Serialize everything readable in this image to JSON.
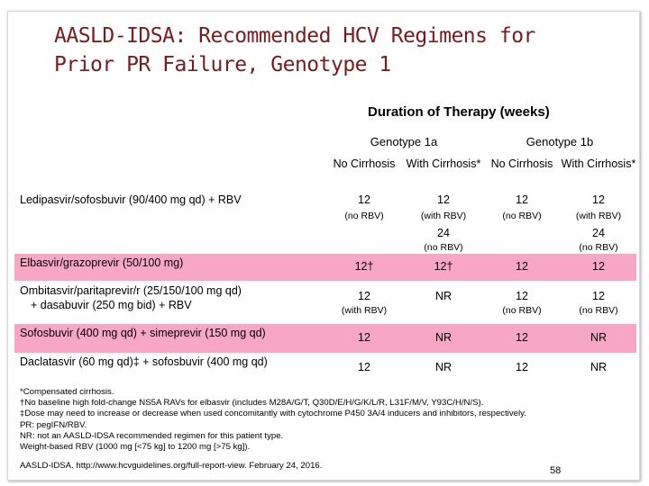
{
  "title": {
    "line1": "AASLD-IDSA: Recommended HCV Regimens for",
    "line2": "Prior PR Failure, Genotype 1"
  },
  "duration_label": "Duration of Therapy (weeks)",
  "genotypes": [
    "Genotype 1a",
    "Genotype 1b"
  ],
  "columns": [
    "No Cirrhosis",
    "With Cirrhosis*",
    "No Cirrhosis",
    "With Cirrhosis*"
  ],
  "rows": [
    {
      "name": "Ledipasvir/sofosbuvir (90/400 mg qd) + RBV",
      "c1": "12",
      "c1_sub": "(no RBV)",
      "c2": "12",
      "c2_sub": "(with RBV)",
      "c2_alt": "24",
      "c2_alt_sub": "(no RBV)",
      "c3": "12",
      "c3_sub": "(no RBV)",
      "c4": "12",
      "c4_sub": "(with RBV)",
      "c4_alt": "24",
      "c4_alt_sub": "(no RBV)"
    },
    {
      "name": "Elbasvir/grazoprevir (50/100 mg)",
      "c1": "12†",
      "c2": "12†",
      "c3": "12",
      "c4": "12"
    },
    {
      "name_line1": "Ombitasvir/paritaprevir/r (25/150/100 mg qd)",
      "name_line2": "+ dasabuvir (250 mg bid) + RBV",
      "c1": "12",
      "c1_sub": "(with RBV)",
      "c2": "NR",
      "c3": "12",
      "c3_sub": "(no RBV)",
      "c4": "12",
      "c4_sub": "(no RBV)"
    },
    {
      "name": "Sofosbuvir (400 mg qd) + simeprevir (150 mg qd)",
      "c1": "12",
      "c2": "NR",
      "c3": "12",
      "c4": "NR"
    },
    {
      "name": "Daclatasvir (60 mg qd)‡ + sofosbuvir (400 mg qd)",
      "c1": "12",
      "c2": "NR",
      "c3": "12",
      "c4": "NR"
    }
  ],
  "footnotes": [
    "*Compensated cirrhosis.",
    "†No baseline high fold-change NS5A RAVs for elbasvir (includes M28A/G/T, Q30D/E/H/G/K/L/R, L31F/M/V, Y93C/H/N/S).",
    "‡Dose may need to increase or decrease when used concomitantly with cytochrome P450 3A/4 inducers and inhibitors, respectively.",
    "PR: pegIFN/RBV.",
    "NR: not an AASLD-IDSA recommended regimen for this patient type.",
    "Weight-based RBV (1000 mg [<75 kg] to 1200 mg [>75 kg])."
  ],
  "source": "AASLD-IDSA. http://www.hcvguidelines.org/full-report-view. February 24, 2016.",
  "page_number": "58"
}
